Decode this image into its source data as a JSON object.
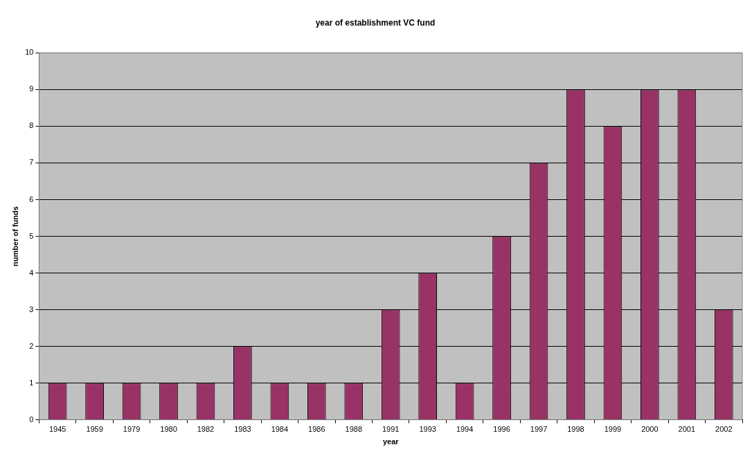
{
  "chart_data": {
    "type": "bar",
    "title": "year of establishment VC fund",
    "xlabel": "year",
    "ylabel": "number of funds",
    "categories": [
      "1945",
      "1959",
      "1979",
      "1980",
      "1982",
      "1983",
      "1984",
      "1986",
      "1988",
      "1991",
      "1993",
      "1994",
      "1996",
      "1997",
      "1998",
      "1999",
      "2000",
      "2001",
      "2002"
    ],
    "values": [
      1,
      1,
      1,
      1,
      1,
      2,
      1,
      1,
      1,
      3,
      4,
      1,
      5,
      7,
      9,
      8,
      9,
      9,
      3
    ],
    "color": "#993366",
    "ylim": [
      0,
      10
    ],
    "yticks": [
      0,
      1,
      2,
      3,
      4,
      5,
      6,
      7,
      8,
      9,
      10
    ],
    "grid": "y",
    "legend": false
  }
}
